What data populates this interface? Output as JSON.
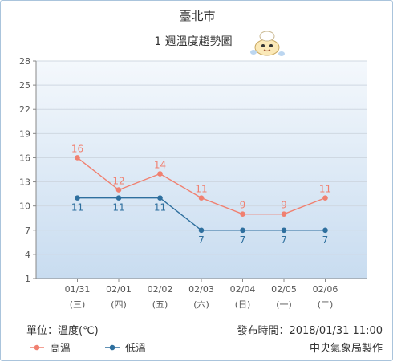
{
  "chart_data": {
    "type": "line",
    "title": "臺北市",
    "subtitle": "1 週溫度趨勢圖",
    "categories": [
      "01/31",
      "02/01",
      "02/02",
      "02/03",
      "02/04",
      "02/05",
      "02/06"
    ],
    "weekdays": [
      "(三)",
      "(四)",
      "(五)",
      "(六)",
      "(日)",
      "(一)",
      "(二)"
    ],
    "y_ticks": [
      1,
      4,
      7,
      10,
      13,
      16,
      19,
      22,
      25,
      28
    ],
    "ylim": [
      1,
      28
    ],
    "grid": true,
    "series": [
      {
        "name": "高溫",
        "color": "#f08070",
        "values": [
          16,
          12,
          14,
          11,
          9,
          9,
          11
        ]
      },
      {
        "name": "低溫",
        "color": "#2e6f9e",
        "values": [
          11,
          11,
          11,
          7,
          7,
          7,
          7
        ]
      }
    ],
    "legend_position": "bottom-left"
  },
  "footer": {
    "unit_label": "單位：溫度(℃)",
    "publish_time": "發布時間：2018/01/31 11:00",
    "source": "中央氣象局製作"
  },
  "colors": {
    "plot_bg_top": "#f4f8fc",
    "plot_bg_bottom": "#c8dcf0",
    "grid": "#cfd8e2",
    "axis": "#888888"
  }
}
